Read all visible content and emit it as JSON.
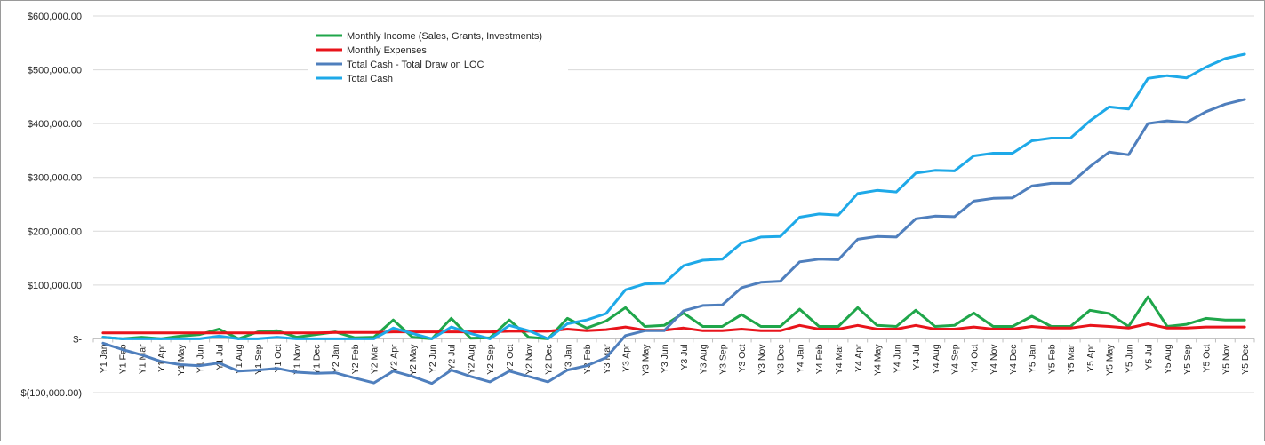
{
  "chart_data": {
    "type": "line",
    "title": "",
    "xlabel": "",
    "ylabel": "",
    "ylim": [
      -100000,
      600000
    ],
    "yticks": [
      600000,
      500000,
      400000,
      300000,
      200000,
      100000,
      0,
      -100000
    ],
    "ytick_labels": [
      "$600,000.00",
      "$500,000.00",
      "$400,000.00",
      "$300,000.00",
      "$200,000.00",
      "$100,000.00",
      "$-",
      "$(100,000.00)"
    ],
    "grid": true,
    "legend_position": "top-left",
    "categories": [
      "Y1 Jan",
      "Y1 Feb",
      "Y1 Mar",
      "Y1 Apr",
      "Y1 May",
      "Y1 Jun",
      "Y1 Jul",
      "Y1 Aug",
      "Y1 Sep",
      "Y1 Oct",
      "Y1 Nov",
      "Y1 Dec",
      "Y2 Jan",
      "Y2 Feb",
      "Y2 Mar",
      "Y2 Apr",
      "Y2 May",
      "Y2 Jun",
      "Y2 Jul",
      "Y2 Aug",
      "Y2 Sep",
      "Y2 Oct",
      "Y2 Nov",
      "Y2 Dec",
      "Y3 Jan",
      "Y3 Feb",
      "Y3 Mar",
      "Y3 Apr",
      "Y3 May",
      "Y3 Jun",
      "Y3 Jul",
      "Y3 Aug",
      "Y3 Sep",
      "Y3 Oct",
      "Y3 Nov",
      "Y3 Dec",
      "Y4 Jan",
      "Y4 Feb",
      "Y4 Mar",
      "Y4 Apr",
      "Y4 May",
      "Y4 Jun",
      "Y4 Jul",
      "Y4 Aug",
      "Y4 Sep",
      "Y4 Oct",
      "Y4 Nov",
      "Y4 Dec",
      "Y5 Jan",
      "Y5 Feb",
      "Y5 Mar",
      "Y5 Apr",
      "Y5 May",
      "Y5 Jun",
      "Y5 Jul",
      "Y5 Aug",
      "Y5 Sep",
      "Y5 Oct",
      "Y5 Nov",
      "Y5 Dec"
    ],
    "series": [
      {
        "name": "Monthly Income (Sales, Grants, Investments)",
        "color": "#1fa64a",
        "values": [
          3000,
          0,
          3000,
          0,
          5000,
          8000,
          18000,
          0,
          13000,
          15000,
          3000,
          8000,
          13000,
          2000,
          3000,
          35000,
          3000,
          0,
          38000,
          1000,
          2000,
          35000,
          3000,
          0,
          38000,
          20000,
          33000,
          58000,
          23000,
          25000,
          48000,
          23000,
          23000,
          45000,
          23000,
          23000,
          55000,
          23000,
          23000,
          58000,
          25000,
          23000,
          53000,
          23000,
          25000,
          48000,
          23000,
          23000,
          42000,
          23000,
          23000,
          53000,
          47000,
          23000,
          78000,
          23000,
          27000,
          38000,
          35000,
          35000
        ]
      },
      {
        "name": "Monthly Expenses",
        "color": "#e8141b",
        "values": [
          11000,
          11000,
          11000,
          11000,
          11000,
          11000,
          11000,
          11000,
          11000,
          11000,
          11000,
          11000,
          12000,
          12000,
          12000,
          13000,
          13000,
          13000,
          13000,
          13000,
          13000,
          14000,
          14000,
          14000,
          18000,
          15000,
          17000,
          22000,
          16000,
          16000,
          20000,
          15000,
          15000,
          18000,
          15000,
          15000,
          25000,
          18000,
          18000,
          25000,
          18000,
          18000,
          25000,
          18000,
          18000,
          22000,
          18000,
          18000,
          23000,
          20000,
          20000,
          25000,
          23000,
          20000,
          28000,
          20000,
          20000,
          22000,
          22000,
          22000
        ]
      },
      {
        "name": "Total Cash - Total Draw on LOC",
        "color": "#4f7fbd",
        "values": [
          -8000,
          -20000,
          -30000,
          -42000,
          -48000,
          -50000,
          -45000,
          -60000,
          -58000,
          -55000,
          -62000,
          -64000,
          -63000,
          -73000,
          -82000,
          -60000,
          -70000,
          -83000,
          -58000,
          -70000,
          -80000,
          -60000,
          -70000,
          -80000,
          -58000,
          -50000,
          -35000,
          6000,
          15000,
          15000,
          52000,
          62000,
          63000,
          95000,
          105000,
          107000,
          143000,
          148000,
          147000,
          185000,
          190000,
          189000,
          223000,
          228000,
          227000,
          256000,
          261000,
          262000,
          284000,
          289000,
          289000,
          320000,
          347000,
          342000,
          400000,
          405000,
          402000,
          422000,
          436000,
          445000
        ]
      },
      {
        "name": "Total Cash",
        "color": "#1ea9e8",
        "values": [
          3000,
          0,
          0,
          0,
          0,
          0,
          5000,
          0,
          0,
          3000,
          0,
          0,
          0,
          0,
          0,
          20000,
          10000,
          0,
          22000,
          10000,
          0,
          25000,
          15000,
          0,
          28000,
          35000,
          47000,
          91000,
          102000,
          103000,
          136000,
          146000,
          148000,
          178000,
          189000,
          190000,
          226000,
          232000,
          230000,
          270000,
          276000,
          273000,
          308000,
          313000,
          312000,
          340000,
          345000,
          345000,
          368000,
          373000,
          373000,
          405000,
          431000,
          427000,
          484000,
          489000,
          485000,
          505000,
          521000,
          529000
        ]
      }
    ]
  }
}
